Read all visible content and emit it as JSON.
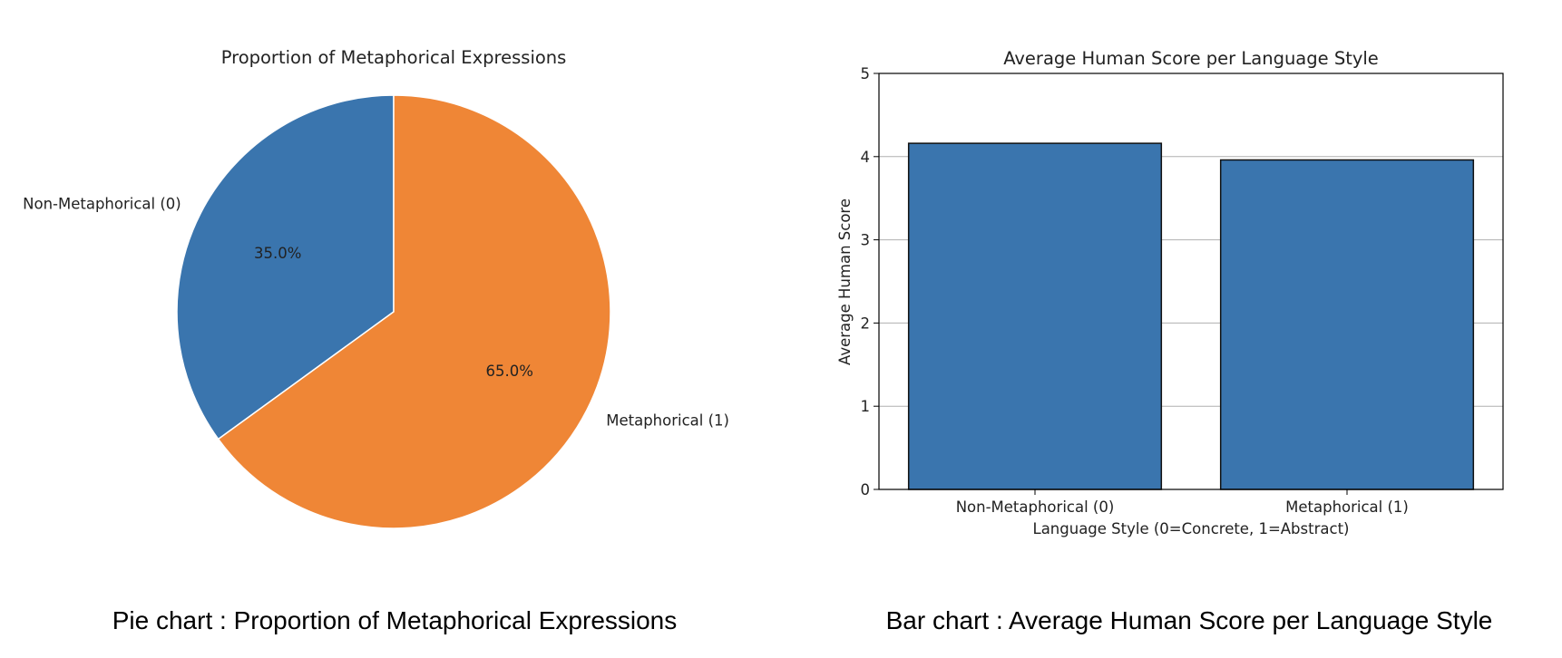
{
  "chart_data": [
    {
      "type": "pie",
      "title": "Proportion of Metaphorical Expressions",
      "labels": [
        "Non-Metaphorical (0)",
        "Metaphorical (1)"
      ],
      "values": [
        35.0,
        65.0
      ],
      "pct_labels": [
        "35.0%",
        "65.0%"
      ],
      "colors": [
        "#3a75ae",
        "#ef8636"
      ]
    },
    {
      "type": "bar",
      "title": "Average Human Score per Language Style",
      "categories": [
        "Non-Metaphorical (0)",
        "Metaphorical (1)"
      ],
      "values": [
        4.16,
        3.96
      ],
      "xlabel": "Language Style (0=Concrete, 1=Abstract)",
      "ylabel": "Average Human Score",
      "ylim": [
        0,
        5
      ],
      "yticks": [
        "0",
        "1",
        "2",
        "3",
        "4",
        "5"
      ],
      "grid": "y",
      "color": "#3a75ae"
    }
  ],
  "captions": {
    "pie": "Pie chart : Proportion of Metaphorical Expressions",
    "bar": "Bar chart : Average Human Score per Language Style"
  }
}
